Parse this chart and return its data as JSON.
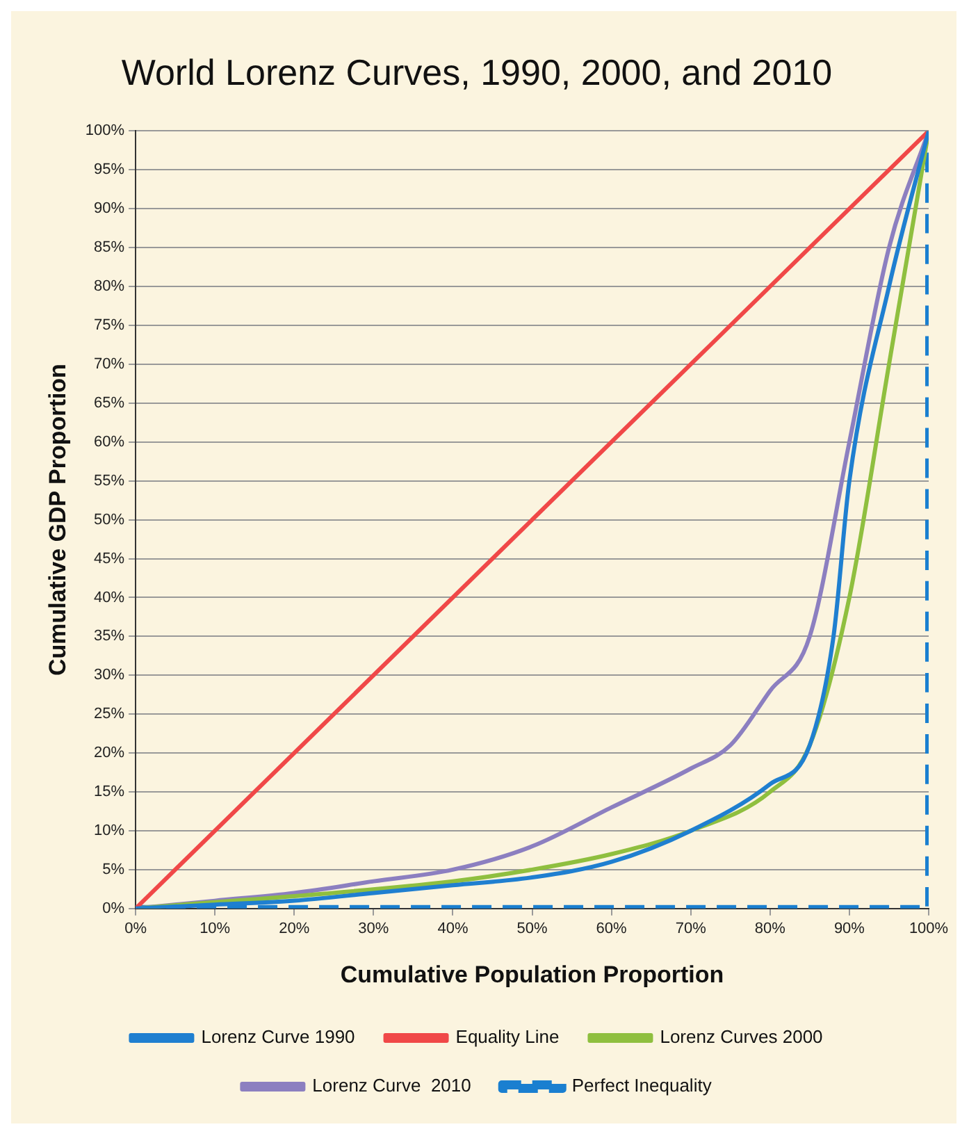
{
  "chart_data": {
    "type": "line",
    "title": "World Lorenz Curves, 1990, 2000, and 2010",
    "xlabel": "Cumulative Population Proportion",
    "ylabel": "Cumulative GDP Proportion",
    "xlim": [
      0,
      100
    ],
    "xticks": [
      {
        "value": 0,
        "label": "0%"
      },
      {
        "value": 10,
        "label": "10%"
      },
      {
        "value": 20,
        "label": "20%"
      },
      {
        "value": 30,
        "label": "30%"
      },
      {
        "value": 40,
        "label": "40%"
      },
      {
        "value": 50,
        "label": "50%"
      },
      {
        "value": 60,
        "label": "60%"
      },
      {
        "value": 70,
        "label": "70%"
      },
      {
        "value": 80,
        "label": "80%"
      },
      {
        "value": 90,
        "label": "90%"
      },
      {
        "value": 100,
        "label": "100%"
      }
    ],
    "ylim": [
      0,
      100
    ],
    "yticks": [
      {
        "value": 0,
        "label": "0%"
      },
      {
        "value": 5,
        "label": "5%"
      },
      {
        "value": 10,
        "label": "10%"
      },
      {
        "value": 15,
        "label": "15%"
      },
      {
        "value": 20,
        "label": "20%"
      },
      {
        "value": 25,
        "label": "25%"
      },
      {
        "value": 30,
        "label": "30%"
      },
      {
        "value": 35,
        "label": "35%"
      },
      {
        "value": 40,
        "label": "40%"
      },
      {
        "value": 45,
        "label": "45%"
      },
      {
        "value": 50,
        "label": "50%"
      },
      {
        "value": 55,
        "label": "55%"
      },
      {
        "value": 60,
        "label": "60%"
      },
      {
        "value": 65,
        "label": "65%"
      },
      {
        "value": 70,
        "label": "70%"
      },
      {
        "value": 75,
        "label": "75%"
      },
      {
        "value": 80,
        "label": "80%"
      },
      {
        "value": 85,
        "label": "85%"
      },
      {
        "value": 90,
        "label": "90%"
      },
      {
        "value": 95,
        "label": "95%"
      },
      {
        "value": 100,
        "label": "100%"
      }
    ],
    "grid": "y",
    "legend": "bottom",
    "marker": "none",
    "series": [
      {
        "name": "Lorenz Curve 1990",
        "color": "#1f7fd0",
        "x": [
          0,
          10,
          20,
          30,
          40,
          50,
          60,
          70,
          80,
          85,
          88,
          90,
          95,
          100
        ],
        "values": [
          0,
          0.5,
          1,
          2,
          3,
          4,
          6,
          10,
          16,
          21,
          35,
          55,
          80,
          100
        ]
      },
      {
        "name": "Equality Line",
        "color": "#f04848",
        "x": [
          0,
          100
        ],
        "values": [
          0,
          100
        ]
      },
      {
        "name": "Lorenz Curves 2000",
        "color": "#8fbf3f",
        "x": [
          0,
          40,
          50,
          60,
          70,
          80,
          85,
          90,
          95,
          100
        ],
        "values": [
          0,
          3.5,
          5,
          7,
          10,
          15,
          21,
          40,
          70,
          100
        ]
      },
      {
        "name": "Lorenz Curve  2010",
        "color": "#8c7fc0",
        "x": [
          0,
          10,
          20,
          30,
          40,
          50,
          60,
          70,
          75,
          80,
          85,
          90,
          95,
          100
        ],
        "values": [
          0,
          1,
          2,
          3.5,
          5,
          8,
          13,
          18,
          21,
          28,
          35,
          60,
          85,
          100
        ]
      },
      {
        "name": "Perfect Inequality",
        "color": "#1a7fd0",
        "line_style": "dashed",
        "x": [
          0,
          100,
          100
        ],
        "values": [
          0,
          0,
          100
        ]
      }
    ]
  }
}
